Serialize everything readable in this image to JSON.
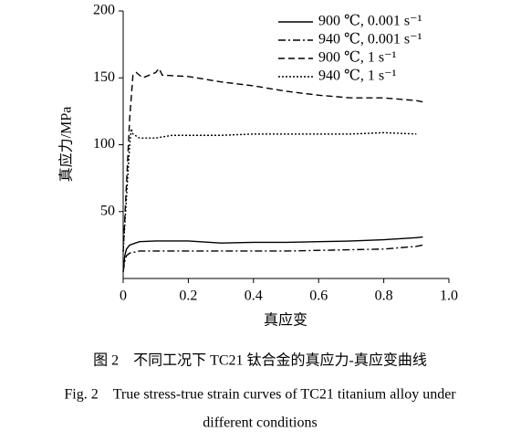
{
  "chart_data": {
    "type": "line",
    "x_label": "真应变",
    "y_label": "真应力/MPa",
    "xlim": [
      0,
      1
    ],
    "xticks": [
      0,
      0.2,
      0.4,
      0.6,
      0.8,
      {
        "value": 1,
        "label": "1.0"
      }
    ],
    "ylim": [
      0,
      200
    ],
    "yticks": [
      50,
      100,
      150,
      200
    ],
    "legend": "upper right",
    "series": [
      {
        "name": "900 ℃, 0.001 s⁻¹",
        "color": "#000000",
        "dash": "solid",
        "x": [
          0,
          0.005,
          0.01,
          0.02,
          0.05,
          0.1,
          0.2,
          0.3,
          0.4,
          0.5,
          0.6,
          0.7,
          0.8,
          0.9,
          0.92
        ],
        "values": [
          5,
          17,
          22,
          25,
          27.5,
          28,
          28,
          26.5,
          27,
          27,
          27.5,
          28,
          29,
          30.5,
          31
        ]
      },
      {
        "name": "940 ℃, 0.001 s⁻¹",
        "color": "#000000",
        "dash": "dashdot",
        "x": [
          0,
          0.005,
          0.01,
          0.02,
          0.05,
          0.1,
          0.2,
          0.3,
          0.4,
          0.5,
          0.6,
          0.7,
          0.8,
          0.9,
          0.92
        ],
        "values": [
          5,
          13,
          17,
          19,
          20.5,
          20.5,
          20.5,
          20.5,
          20.5,
          20.5,
          21,
          21.5,
          22,
          24,
          25
        ]
      },
      {
        "name": "900 ℃, 1 s⁻¹",
        "color": "#000000",
        "dash": "dashed",
        "x": [
          0,
          0.01,
          0.02,
          0.03,
          0.04,
          0.06,
          0.1,
          0.11,
          0.12,
          0.2,
          0.3,
          0.4,
          0.5,
          0.6,
          0.7,
          0.8,
          0.9,
          0.92
        ],
        "values": [
          20,
          70,
          120,
          152,
          154,
          150,
          154,
          157,
          152,
          151,
          147,
          144,
          140,
          137,
          135,
          135,
          133,
          132
        ]
      },
      {
        "name": "940 ℃, 1 s⁻¹",
        "color": "#000000",
        "dash": "dotted",
        "x": [
          0,
          0.01,
          0.02,
          0.025,
          0.03,
          0.05,
          0.1,
          0.15,
          0.2,
          0.3,
          0.4,
          0.5,
          0.6,
          0.7,
          0.8,
          0.9
        ],
        "values": [
          20,
          60,
          100,
          112,
          108,
          105,
          105,
          107,
          107,
          107,
          108,
          108,
          108,
          108,
          109,
          108
        ]
      }
    ]
  },
  "caption": {
    "zh": "图 2　不同工况下 TC21 钛合金的真应力-真应变曲线",
    "en": [
      "Fig. 2　True stress-true strain curves of TC21 titanium alloy under",
      "different conditions"
    ]
  }
}
